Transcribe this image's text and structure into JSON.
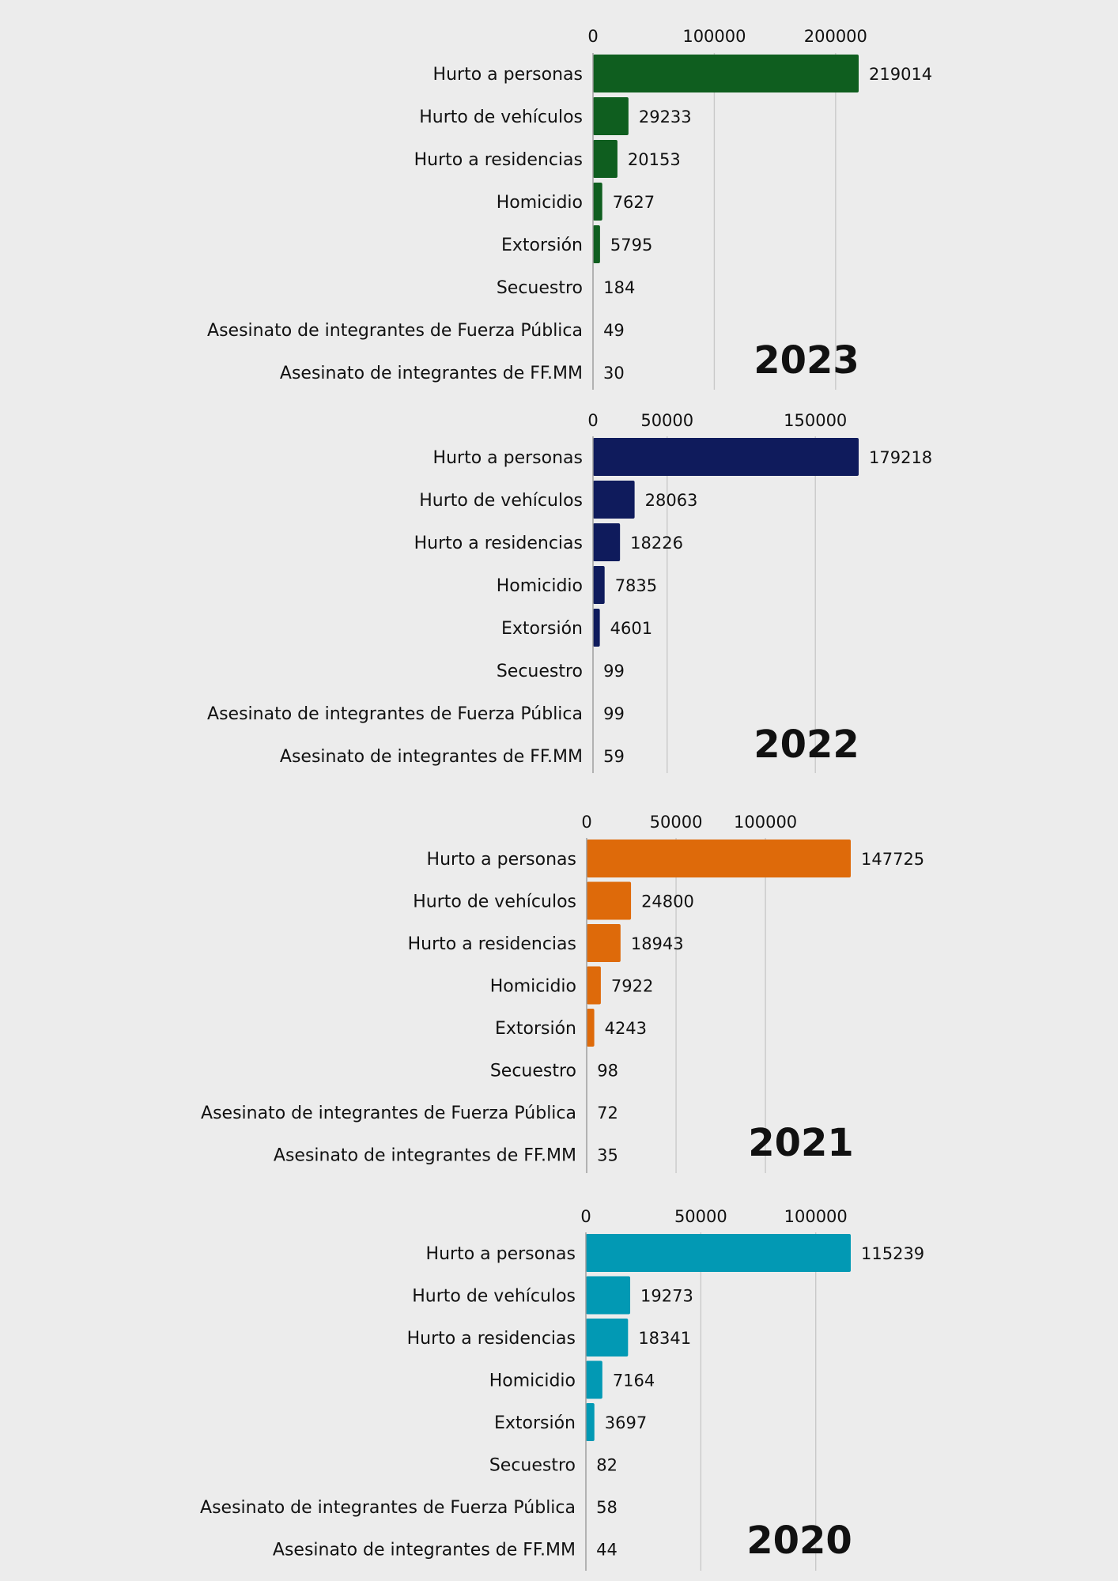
{
  "chart_data": [
    {
      "type": "bar",
      "orientation": "horizontal",
      "year_label": "2023",
      "color": "#0f5e1f",
      "categories": [
        "Hurto a personas",
        "Hurto de vehículos",
        "Hurto a residencias",
        "Homicidio",
        "Extorsión",
        "Secuestro",
        "Asesinato de integrantes de Fuerza Pública",
        "Asesinato de integrantes de FF.MM"
      ],
      "values": [
        219014,
        29233,
        20153,
        7627,
        5795,
        184,
        49,
        30
      ],
      "xticks": [
        0,
        100000,
        200000
      ],
      "xlim": [
        0,
        219014
      ],
      "grid": true
    },
    {
      "type": "bar",
      "orientation": "horizontal",
      "year_label": "2022",
      "color": "#0f1b5c",
      "categories": [
        "Hurto a personas",
        "Hurto de vehículos",
        "Hurto a residencias",
        "Homicidio",
        "Extorsión",
        "Secuestro",
        "Asesinato de integrantes de Fuerza Pública",
        "Asesinato de integrantes de FF.MM"
      ],
      "values": [
        179218,
        28063,
        18226,
        7835,
        4601,
        99,
        99,
        59
      ],
      "xticks": [
        0,
        50000,
        150000
      ],
      "xlim": [
        0,
        179218
      ],
      "grid": true
    },
    {
      "type": "bar",
      "orientation": "horizontal",
      "year_label": "2021",
      "color": "#de6a0a",
      "categories": [
        "Hurto a personas",
        "Hurto de vehículos",
        "Hurto a residencias",
        "Homicidio",
        "Extorsión",
        "Secuestro",
        "Asesinato de integrantes de Fuerza Pública",
        "Asesinato de integrantes de FF.MM"
      ],
      "values": [
        147725,
        24800,
        18943,
        7922,
        4243,
        98,
        72,
        35
      ],
      "xticks": [
        0,
        50000,
        100000
      ],
      "xlim": [
        0,
        147725
      ],
      "grid": true
    },
    {
      "type": "bar",
      "orientation": "horizontal",
      "year_label": "2020",
      "color": "#0299b4",
      "categories": [
        "Hurto a personas",
        "Hurto de vehículos",
        "Hurto a residencias",
        "Homicidio",
        "Extorsión",
        "Secuestro",
        "Asesinato de integrantes de Fuerza Pública",
        "Asesinato de integrantes de FF.MM"
      ],
      "values": [
        115239,
        19273,
        18341,
        7164,
        3697,
        82,
        58,
        44
      ],
      "xticks": [
        0,
        50000,
        100000
      ],
      "xlim": [
        0,
        115239
      ],
      "grid": true
    }
  ]
}
